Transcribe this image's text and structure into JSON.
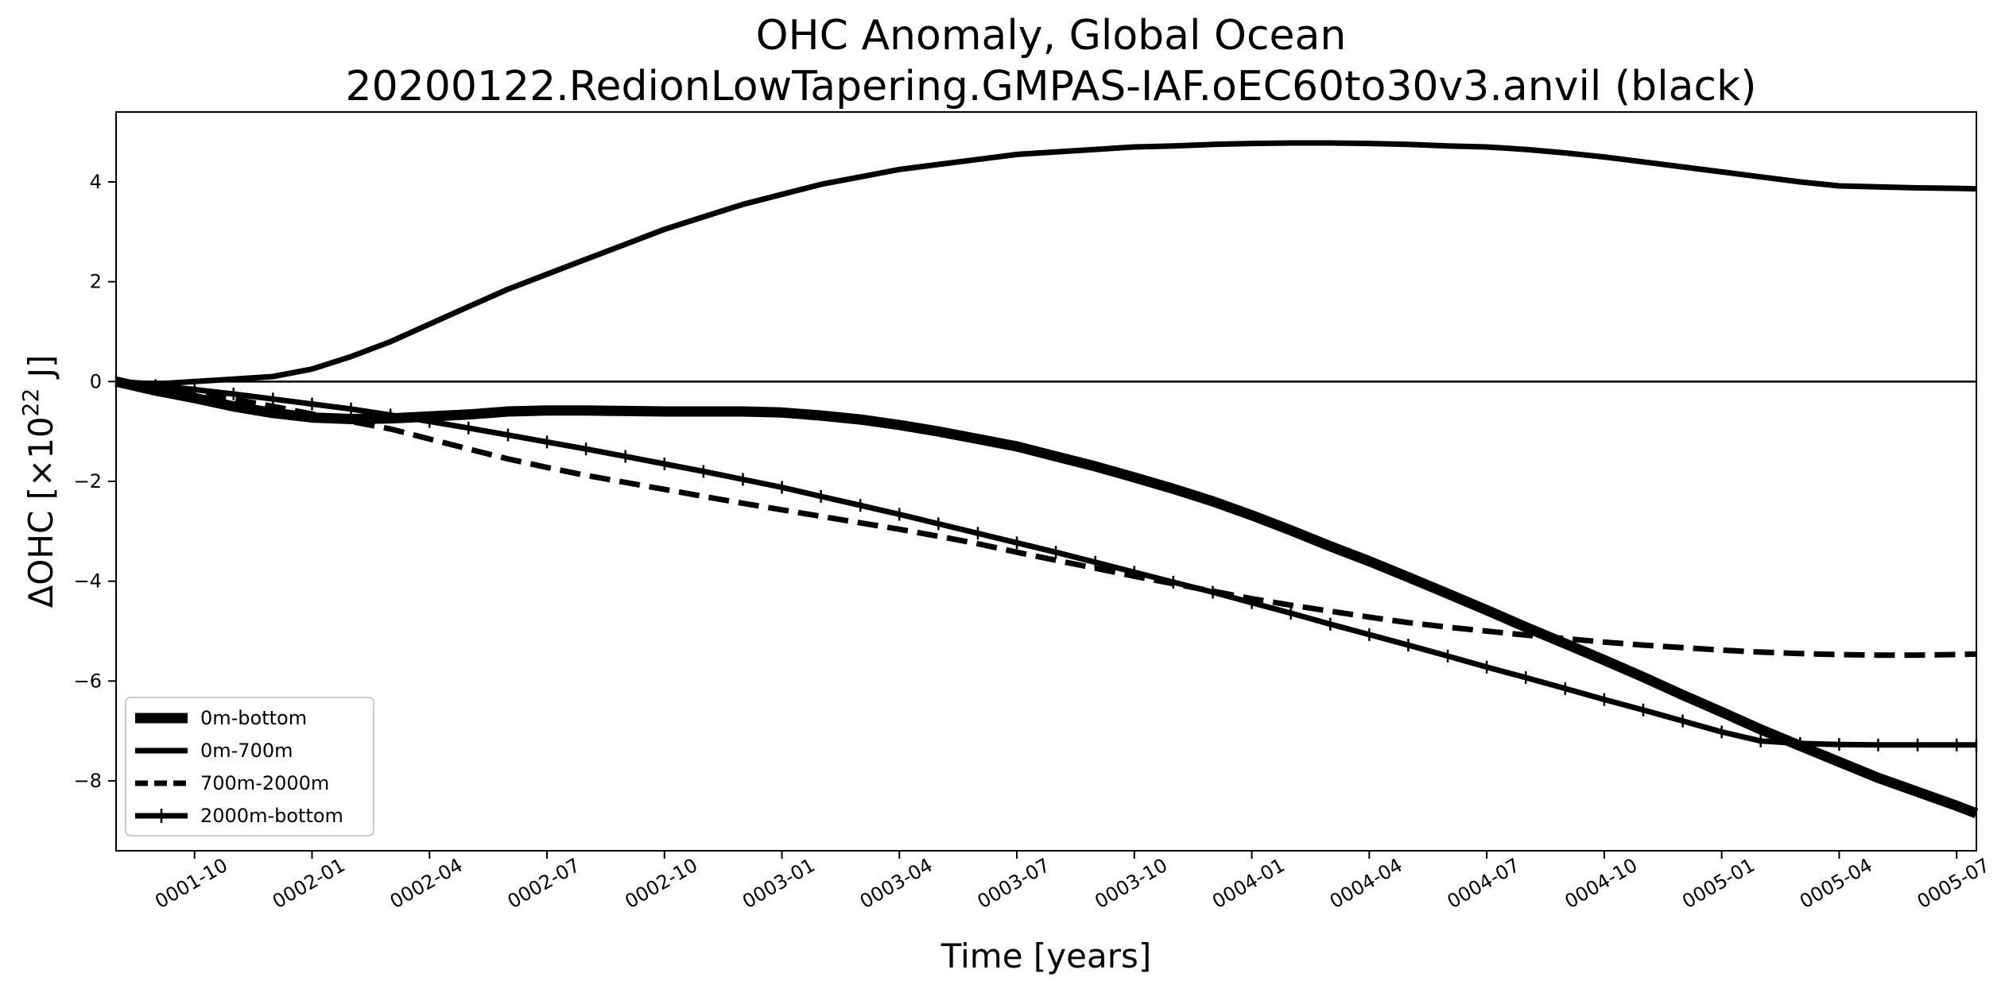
{
  "chart_data": {
    "type": "line",
    "title": "OHC Anomaly, Global Ocean",
    "subtitle": "20200122.RedionLowTapering.GMPAS-IAF.oEC60to30v3.anvil (black)",
    "xlabel": "Time [years]",
    "ylabel_prefix": "ΔOHC [×10",
    "ylabel_exp": "22",
    "ylabel_suffix": " J]",
    "xlim": [
      1.583,
      5.542
    ],
    "ylim": [
      -9.4,
      5.4
    ],
    "grid": false,
    "legend_position": "lower-left",
    "x_ticks": [
      {
        "v": 1.75,
        "label": "0001-10"
      },
      {
        "v": 2.0,
        "label": "0002-01"
      },
      {
        "v": 2.25,
        "label": "0002-04"
      },
      {
        "v": 2.5,
        "label": "0002-07"
      },
      {
        "v": 2.75,
        "label": "0002-10"
      },
      {
        "v": 3.0,
        "label": "0003-01"
      },
      {
        "v": 3.25,
        "label": "0003-04"
      },
      {
        "v": 3.5,
        "label": "0003-07"
      },
      {
        "v": 3.75,
        "label": "0003-10"
      },
      {
        "v": 4.0,
        "label": "0004-01"
      },
      {
        "v": 4.25,
        "label": "0004-04"
      },
      {
        "v": 4.5,
        "label": "0004-07"
      },
      {
        "v": 4.75,
        "label": "0004-10"
      },
      {
        "v": 5.0,
        "label": "0005-01"
      },
      {
        "v": 5.25,
        "label": "0005-04"
      },
      {
        "v": 5.5,
        "label": "0005-07"
      }
    ],
    "y_ticks": [
      {
        "v": 4,
        "label": "4"
      },
      {
        "v": 2,
        "label": "2"
      },
      {
        "v": 0,
        "label": "0"
      },
      {
        "v": -2,
        "label": "−2"
      },
      {
        "v": -4,
        "label": "−4"
      },
      {
        "v": -6,
        "label": "−6"
      },
      {
        "v": -8,
        "label": "−8"
      }
    ],
    "x": [
      1.583,
      1.667,
      1.75,
      1.833,
      1.917,
      2.0,
      2.083,
      2.167,
      2.25,
      2.333,
      2.417,
      2.5,
      2.583,
      2.667,
      2.75,
      2.833,
      2.917,
      3.0,
      3.083,
      3.167,
      3.25,
      3.333,
      3.417,
      3.5,
      3.583,
      3.667,
      3.75,
      3.833,
      3.917,
      4.0,
      4.083,
      4.167,
      4.25,
      4.333,
      4.417,
      4.5,
      4.583,
      4.667,
      4.75,
      4.833,
      4.917,
      5.0,
      5.083,
      5.167,
      5.25,
      5.333,
      5.417,
      5.5,
      5.542
    ],
    "series": [
      {
        "name": "0m-bottom",
        "style": "thick",
        "values": [
          0,
          -0.18,
          -0.33,
          -0.5,
          -0.63,
          -0.72,
          -0.75,
          -0.74,
          -0.7,
          -0.66,
          -0.6,
          -0.58,
          -0.58,
          -0.59,
          -0.6,
          -0.6,
          -0.6,
          -0.62,
          -0.68,
          -0.76,
          -0.87,
          -1.0,
          -1.15,
          -1.3,
          -1.5,
          -1.7,
          -1.92,
          -2.15,
          -2.4,
          -2.68,
          -2.98,
          -3.3,
          -3.6,
          -3.92,
          -4.25,
          -4.58,
          -4.92,
          -5.25,
          -5.58,
          -5.92,
          -6.28,
          -6.62,
          -6.97,
          -7.3,
          -7.62,
          -7.94,
          -8.22,
          -8.5,
          -8.65
        ]
      },
      {
        "name": "0m-700m",
        "style": "solid",
        "values": [
          0,
          -0.05,
          0,
          0.05,
          0.1,
          0.25,
          0.5,
          0.8,
          1.15,
          1.5,
          1.85,
          2.15,
          2.45,
          2.75,
          3.05,
          3.3,
          3.55,
          3.75,
          3.95,
          4.1,
          4.25,
          4.35,
          4.45,
          4.55,
          4.6,
          4.65,
          4.7,
          4.72,
          4.75,
          4.77,
          4.78,
          4.78,
          4.77,
          4.75,
          4.72,
          4.7,
          4.65,
          4.58,
          4.5,
          4.4,
          4.3,
          4.2,
          4.1,
          4.0,
          3.92,
          3.9,
          3.88,
          3.87,
          3.86
        ]
      },
      {
        "name": "700m-2000m",
        "style": "dashed",
        "values": [
          0,
          -0.1,
          -0.2,
          -0.35,
          -0.5,
          -0.65,
          -0.8,
          -0.95,
          -1.15,
          -1.35,
          -1.55,
          -1.72,
          -1.88,
          -2.02,
          -2.16,
          -2.3,
          -2.44,
          -2.57,
          -2.7,
          -2.83,
          -2.96,
          -3.1,
          -3.25,
          -3.42,
          -3.58,
          -3.74,
          -3.9,
          -4.05,
          -4.2,
          -4.35,
          -4.48,
          -4.6,
          -4.72,
          -4.83,
          -4.92,
          -5.0,
          -5.08,
          -5.15,
          -5.22,
          -5.28,
          -5.33,
          -5.38,
          -5.42,
          -5.45,
          -5.47,
          -5.48,
          -5.48,
          -5.47,
          -5.46
        ]
      },
      {
        "name": "2000m-bottom",
        "style": "solid-plus",
        "values": [
          0,
          -0.08,
          -0.16,
          -0.25,
          -0.35,
          -0.45,
          -0.55,
          -0.67,
          -0.8,
          -0.93,
          -1.07,
          -1.21,
          -1.35,
          -1.5,
          -1.65,
          -1.8,
          -1.96,
          -2.12,
          -2.3,
          -2.48,
          -2.66,
          -2.85,
          -3.04,
          -3.23,
          -3.42,
          -3.62,
          -3.82,
          -4.02,
          -4.22,
          -4.43,
          -4.64,
          -4.86,
          -5.07,
          -5.28,
          -5.5,
          -5.72,
          -5.93,
          -6.15,
          -6.37,
          -6.58,
          -6.8,
          -7.02,
          -7.2,
          -7.25,
          -7.27,
          -7.28,
          -7.28,
          -7.28,
          -7.28
        ]
      }
    ]
  }
}
